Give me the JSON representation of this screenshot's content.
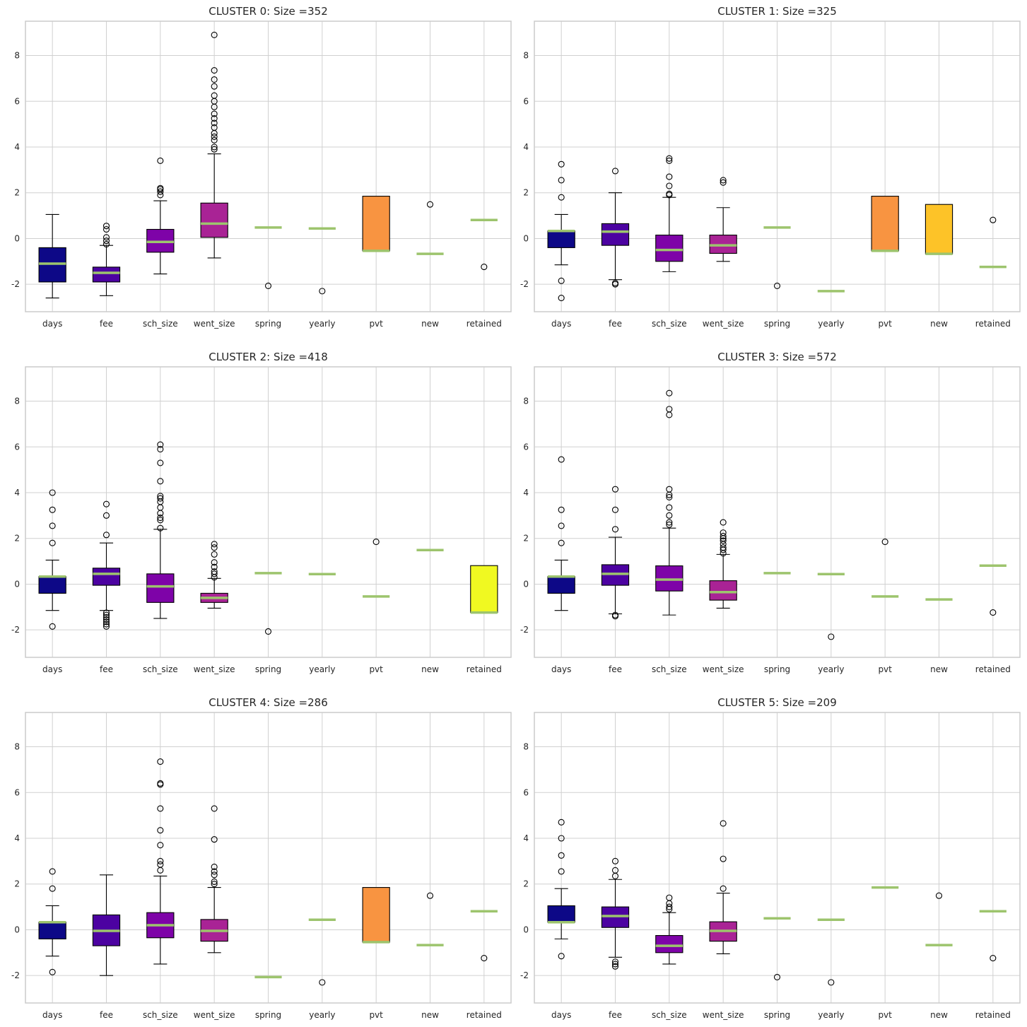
{
  "colors": {
    "palette": [
      "#0d0887",
      "#4c02a1",
      "#7e03a8",
      "#a92395",
      "#cc4778",
      "#e56b5d",
      "#f89441",
      "#fdc328",
      "#f0f921"
    ],
    "median": "#9dc46d",
    "grid": "#d0d0d0",
    "frame": "#cccccc"
  },
  "chart_data": [
    {
      "type": "box",
      "title": "CLUSTER 0: Size =352",
      "categories": [
        "days",
        "fee",
        "sch_size",
        "went_size",
        "spring",
        "yearly",
        "pvt",
        "new",
        "retained"
      ],
      "ylim": [
        -3.2,
        9.5
      ],
      "yticks": [
        -2,
        0,
        2,
        4,
        6,
        8
      ],
      "boxes": [
        {
          "q1": -1.9,
          "med": -1.1,
          "q3": -0.4,
          "lo": -2.6,
          "hi": 1.05,
          "fliers": []
        },
        {
          "q1": -1.9,
          "med": -1.5,
          "q3": -1.25,
          "lo": -2.5,
          "hi": -0.3,
          "fliers": [
            -0.25,
            -0.1,
            0.05,
            0.4,
            0.55
          ]
        },
        {
          "q1": -0.6,
          "med": -0.15,
          "q3": 0.4,
          "lo": -1.55,
          "hi": 1.65,
          "fliers": [
            1.9,
            2.05,
            2.15,
            2.2,
            3.4
          ]
        },
        {
          "q1": 0.05,
          "med": 0.65,
          "q3": 1.55,
          "lo": -0.85,
          "hi": 3.7,
          "fliers": [
            3.9,
            4.0,
            4.3,
            4.45,
            4.6,
            4.85,
            5.05,
            5.25,
            5.45,
            5.75,
            6.0,
            6.25,
            6.65,
            6.95,
            7.35,
            8.9
          ]
        },
        {
          "q1": 0.48,
          "med": 0.48,
          "q3": 0.48,
          "lo": 0.48,
          "hi": 0.48,
          "fliers": [
            -2.07
          ]
        },
        {
          "q1": 0.44,
          "med": 0.44,
          "q3": 0.44,
          "lo": 0.44,
          "hi": 0.44,
          "fliers": [
            -2.3
          ]
        },
        {
          "q1": -0.54,
          "med": -0.54,
          "q3": 1.85,
          "lo": -0.54,
          "hi": 1.85,
          "fliers": []
        },
        {
          "q1": -0.67,
          "med": -0.67,
          "q3": -0.67,
          "lo": -0.67,
          "hi": -0.67,
          "fliers": [
            1.49
          ]
        },
        {
          "q1": 0.81,
          "med": 0.81,
          "q3": 0.81,
          "lo": 0.81,
          "hi": 0.81,
          "fliers": [
            -1.24
          ]
        }
      ]
    },
    {
      "type": "box",
      "title": "CLUSTER 1: Size =325",
      "categories": [
        "days",
        "fee",
        "sch_size",
        "went_size",
        "spring",
        "yearly",
        "pvt",
        "new",
        "retained"
      ],
      "ylim": [
        -3.2,
        9.5
      ],
      "yticks": [
        -2,
        0,
        2,
        4,
        6,
        8
      ],
      "boxes": [
        {
          "q1": -0.4,
          "med": 0.33,
          "q3": 0.33,
          "lo": -1.15,
          "hi": 1.05,
          "fliers": [
            -2.6,
            -1.85,
            1.8,
            2.55,
            3.25
          ]
        },
        {
          "q1": -0.3,
          "med": 0.3,
          "q3": 0.65,
          "lo": -1.8,
          "hi": 2.0,
          "fliers": [
            -2.0,
            -1.95,
            2.95
          ]
        },
        {
          "q1": -1.0,
          "med": -0.5,
          "q3": 0.15,
          "lo": -1.45,
          "hi": 1.8,
          "fliers": [
            1.9,
            1.95,
            2.3,
            2.7,
            3.4,
            3.5
          ]
        },
        {
          "q1": -0.65,
          "med": -0.3,
          "q3": 0.15,
          "lo": -1.0,
          "hi": 1.35,
          "fliers": [
            2.45,
            2.55
          ]
        },
        {
          "q1": 0.48,
          "med": 0.48,
          "q3": 0.48,
          "lo": 0.48,
          "hi": 0.48,
          "fliers": [
            -2.07
          ]
        },
        {
          "q1": -2.3,
          "med": -2.3,
          "q3": -2.3,
          "lo": -2.3,
          "hi": -2.3,
          "fliers": []
        },
        {
          "q1": -0.54,
          "med": -0.54,
          "q3": 1.85,
          "lo": -0.54,
          "hi": 1.85,
          "fliers": []
        },
        {
          "q1": -0.67,
          "med": -0.67,
          "q3": 1.49,
          "lo": -0.67,
          "hi": 1.49,
          "fliers": []
        },
        {
          "q1": -1.24,
          "med": -1.24,
          "q3": -1.24,
          "lo": -1.24,
          "hi": -1.24,
          "fliers": [
            0.81
          ]
        }
      ]
    },
    {
      "type": "box",
      "title": "CLUSTER 2: Size =418",
      "categories": [
        "days",
        "fee",
        "sch_size",
        "went_size",
        "spring",
        "yearly",
        "pvt",
        "new",
        "retained"
      ],
      "ylim": [
        -3.2,
        9.5
      ],
      "yticks": [
        -2,
        0,
        2,
        4,
        6,
        8
      ],
      "boxes": [
        {
          "q1": -0.4,
          "med": 0.33,
          "q3": 0.33,
          "lo": -1.15,
          "hi": 1.05,
          "fliers": [
            -1.85,
            1.8,
            2.55,
            3.25,
            4.0
          ]
        },
        {
          "q1": -0.05,
          "med": 0.45,
          "q3": 0.7,
          "lo": -1.15,
          "hi": 1.8,
          "fliers": [
            -1.85,
            -1.75,
            -1.65,
            -1.55,
            -1.45,
            -1.35,
            -1.25,
            2.15,
            3.0,
            3.5
          ]
        },
        {
          "q1": -0.8,
          "med": -0.1,
          "q3": 0.45,
          "lo": -1.5,
          "hi": 2.4,
          "fliers": [
            2.45,
            2.8,
            2.9,
            3.1,
            3.35,
            3.6,
            3.75,
            3.85,
            4.5,
            5.3,
            5.9,
            6.1
          ]
        },
        {
          "q1": -0.8,
          "med": -0.6,
          "q3": -0.4,
          "lo": -1.05,
          "hi": 0.25,
          "fliers": [
            0.3,
            0.45,
            0.55,
            0.75,
            0.95,
            1.3,
            1.6,
            1.75
          ]
        },
        {
          "q1": 0.48,
          "med": 0.48,
          "q3": 0.48,
          "lo": 0.48,
          "hi": 0.48,
          "fliers": [
            -2.07
          ]
        },
        {
          "q1": 0.44,
          "med": 0.44,
          "q3": 0.44,
          "lo": 0.44,
          "hi": 0.44,
          "fliers": []
        },
        {
          "q1": -0.54,
          "med": -0.54,
          "q3": -0.54,
          "lo": -0.54,
          "hi": -0.54,
          "fliers": [
            1.85
          ]
        },
        {
          "q1": 1.49,
          "med": 1.49,
          "q3": 1.49,
          "lo": 1.49,
          "hi": 1.49,
          "fliers": []
        },
        {
          "q1": -1.24,
          "med": -1.24,
          "q3": 0.81,
          "lo": -1.24,
          "hi": 0.81,
          "fliers": []
        }
      ]
    },
    {
      "type": "box",
      "title": "CLUSTER 3: Size =572",
      "categories": [
        "days",
        "fee",
        "sch_size",
        "went_size",
        "spring",
        "yearly",
        "pvt",
        "new",
        "retained"
      ],
      "ylim": [
        -3.2,
        9.5
      ],
      "yticks": [
        -2,
        0,
        2,
        4,
        6,
        8
      ],
      "boxes": [
        {
          "q1": -0.4,
          "med": 0.33,
          "q3": 0.33,
          "lo": -1.15,
          "hi": 1.05,
          "fliers": [
            1.8,
            2.55,
            3.25,
            5.45
          ]
        },
        {
          "q1": -0.05,
          "med": 0.45,
          "q3": 0.85,
          "lo": -1.3,
          "hi": 2.05,
          "fliers": [
            -1.35,
            -1.4,
            2.4,
            3.25,
            4.15
          ]
        },
        {
          "q1": -0.3,
          "med": 0.2,
          "q3": 0.8,
          "lo": -1.35,
          "hi": 2.45,
          "fliers": [
            2.6,
            2.7,
            3.0,
            3.35,
            3.8,
            3.9,
            4.15,
            7.4,
            7.65,
            8.35
          ]
        },
        {
          "q1": -0.7,
          "med": -0.35,
          "q3": 0.15,
          "lo": -1.05,
          "hi": 1.3,
          "fliers": [
            1.35,
            1.5,
            1.6,
            1.75,
            1.9,
            2.0,
            2.1,
            2.25,
            2.7
          ]
        },
        {
          "q1": 0.48,
          "med": 0.48,
          "q3": 0.48,
          "lo": 0.48,
          "hi": 0.48,
          "fliers": []
        },
        {
          "q1": 0.44,
          "med": 0.44,
          "q3": 0.44,
          "lo": 0.44,
          "hi": 0.44,
          "fliers": [
            -2.3
          ]
        },
        {
          "q1": -0.54,
          "med": -0.54,
          "q3": -0.54,
          "lo": -0.54,
          "hi": -0.54,
          "fliers": [
            1.85
          ]
        },
        {
          "q1": -0.67,
          "med": -0.67,
          "q3": -0.67,
          "lo": -0.67,
          "hi": -0.67,
          "fliers": []
        },
        {
          "q1": 0.81,
          "med": 0.81,
          "q3": 0.81,
          "lo": 0.81,
          "hi": 0.81,
          "fliers": [
            -1.24
          ]
        }
      ]
    },
    {
      "type": "box",
      "title": "CLUSTER 4: Size =286",
      "categories": [
        "days",
        "fee",
        "sch_size",
        "went_size",
        "spring",
        "yearly",
        "pvt",
        "new",
        "retained"
      ],
      "ylim": [
        -3.2,
        9.5
      ],
      "yticks": [
        -2,
        0,
        2,
        4,
        6,
        8
      ],
      "boxes": [
        {
          "q1": -0.4,
          "med": 0.33,
          "q3": 0.33,
          "lo": -1.15,
          "hi": 1.05,
          "fliers": [
            -1.85,
            1.8,
            2.55
          ]
        },
        {
          "q1": -0.7,
          "med": -0.05,
          "q3": 0.65,
          "lo": -2.0,
          "hi": 2.4,
          "fliers": []
        },
        {
          "q1": -0.35,
          "med": 0.2,
          "q3": 0.75,
          "lo": -1.5,
          "hi": 2.35,
          "fliers": [
            2.6,
            2.85,
            3.0,
            3.7,
            4.35,
            5.3,
            6.35,
            6.4,
            7.35
          ]
        },
        {
          "q1": -0.5,
          "med": -0.05,
          "q3": 0.45,
          "lo": -1.0,
          "hi": 1.85,
          "fliers": [
            2.0,
            2.1,
            2.4,
            2.55,
            2.75,
            3.95,
            5.3
          ]
        },
        {
          "q1": -2.07,
          "med": -2.07,
          "q3": -2.07,
          "lo": -2.07,
          "hi": -2.07,
          "fliers": []
        },
        {
          "q1": 0.44,
          "med": 0.44,
          "q3": 0.44,
          "lo": 0.44,
          "hi": 0.44,
          "fliers": [
            -2.3
          ]
        },
        {
          "q1": -0.54,
          "med": -0.54,
          "q3": 1.85,
          "lo": -0.54,
          "hi": 1.85,
          "fliers": []
        },
        {
          "q1": -0.67,
          "med": -0.67,
          "q3": -0.67,
          "lo": -0.67,
          "hi": -0.67,
          "fliers": [
            1.49
          ]
        },
        {
          "q1": 0.81,
          "med": 0.81,
          "q3": 0.81,
          "lo": 0.81,
          "hi": 0.81,
          "fliers": [
            -1.24
          ]
        }
      ]
    },
    {
      "type": "box",
      "title": "CLUSTER 5: Size =209",
      "categories": [
        "days",
        "fee",
        "sch_size",
        "went_size",
        "spring",
        "yearly",
        "pvt",
        "new",
        "retained"
      ],
      "ylim": [
        -3.2,
        9.5
      ],
      "yticks": [
        -2,
        0,
        2,
        4,
        6,
        8
      ],
      "boxes": [
        {
          "q1": 0.33,
          "med": 0.33,
          "q3": 1.05,
          "lo": -0.4,
          "hi": 1.8,
          "fliers": [
            -1.15,
            2.55,
            3.25,
            4.0,
            4.7
          ]
        },
        {
          "q1": 0.1,
          "med": 0.6,
          "q3": 1.0,
          "lo": -1.2,
          "hi": 2.2,
          "fliers": [
            -1.4,
            -1.5,
            -1.6,
            2.35,
            2.6,
            3.0
          ]
        },
        {
          "q1": -1.0,
          "med": -0.7,
          "q3": -0.25,
          "lo": -1.5,
          "hi": 0.75,
          "fliers": [
            0.9,
            1.0,
            1.15,
            1.4
          ]
        },
        {
          "q1": -0.5,
          "med": -0.05,
          "q3": 0.35,
          "lo": -1.05,
          "hi": 1.6,
          "fliers": [
            1.8,
            3.1,
            4.65
          ]
        },
        {
          "q1": 0.5,
          "med": 0.5,
          "q3": 0.5,
          "lo": 0.5,
          "hi": 0.5,
          "fliers": [
            -2.07
          ]
        },
        {
          "q1": 0.44,
          "med": 0.44,
          "q3": 0.44,
          "lo": 0.44,
          "hi": 0.44,
          "fliers": [
            -2.3
          ]
        },
        {
          "q1": 1.85,
          "med": 1.85,
          "q3": 1.85,
          "lo": 1.85,
          "hi": 1.85,
          "fliers": []
        },
        {
          "q1": -0.67,
          "med": -0.67,
          "q3": -0.67,
          "lo": -0.67,
          "hi": -0.67,
          "fliers": [
            1.49
          ]
        },
        {
          "q1": 0.81,
          "med": 0.81,
          "q3": 0.81,
          "lo": 0.81,
          "hi": 0.81,
          "fliers": [
            -1.24
          ]
        }
      ]
    }
  ]
}
